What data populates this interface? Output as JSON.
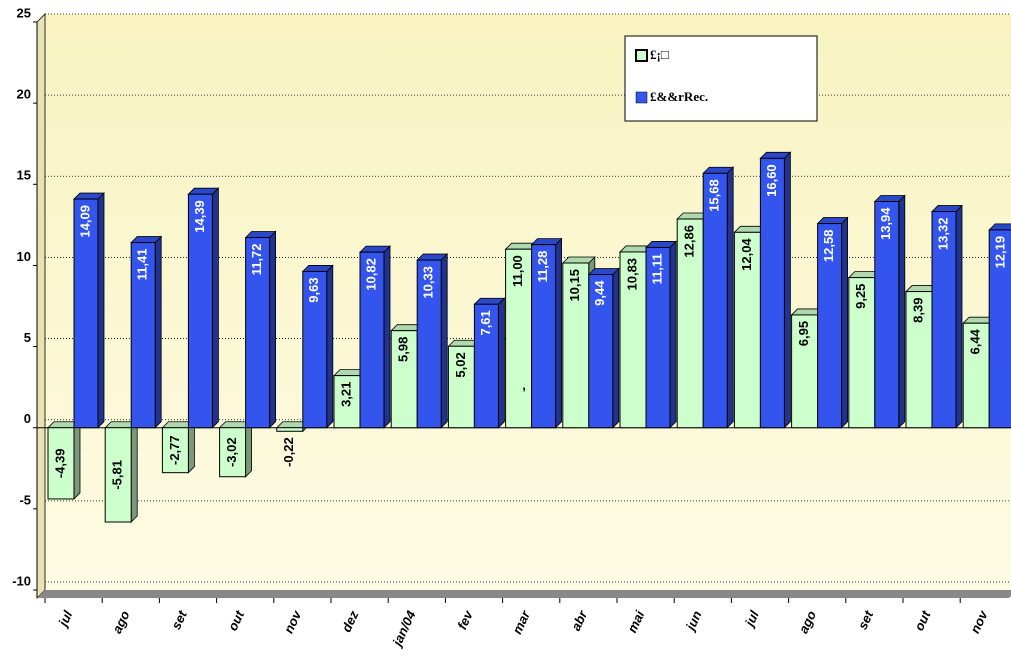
{
  "chart_data": {
    "type": "bar3d",
    "categories": [
      "jul",
      "ago",
      "set",
      "out",
      "nov",
      "dez",
      "jan/04",
      "fev",
      "mar",
      "abr",
      "mai",
      "jun",
      "jul",
      "ago",
      "set",
      "out",
      "nov"
    ],
    "series": [
      {
        "name": "£¡□",
        "color": "#ccffcc",
        "values": [
          -4.39,
          -5.81,
          -2.77,
          -3.02,
          -0.22,
          3.21,
          5.98,
          5.02,
          11.0,
          10.15,
          10.83,
          12.86,
          12.04,
          6.95,
          9.25,
          8.39,
          6.44
        ],
        "value_labels": [
          "-4,39",
          "-5,81",
          "-2,77",
          "-3,02",
          "-0,22",
          "3,21",
          "5,98",
          "5,02",
          "11,00",
          "10,15",
          "10,83",
          "12,86",
          "12,04",
          "6,95",
          "9,25",
          "8,39",
          "6,44"
        ]
      },
      {
        "name": "£&&rRec.",
        "color": "#3355ee",
        "values": [
          14.09,
          11.41,
          14.39,
          11.72,
          9.63,
          10.82,
          10.33,
          7.61,
          11.28,
          9.44,
          11.11,
          15.68,
          16.6,
          12.58,
          13.94,
          13.32,
          12.19
        ],
        "value_labels": [
          "14,09",
          "11,41",
          "14,39",
          "11,72",
          "9,63",
          "10,82",
          "10,33",
          "7,61",
          "11,28",
          "9,44",
          "11,11",
          "15,68",
          "16,60",
          "12,58",
          "13,94",
          "13,32",
          "12,19"
        ]
      }
    ],
    "annotations": [
      ","
    ],
    "ylim": [
      -10,
      25
    ],
    "yticks": [
      -10,
      -5,
      0,
      5,
      10,
      15,
      20,
      25
    ],
    "grid": true,
    "legend": "top-right"
  }
}
